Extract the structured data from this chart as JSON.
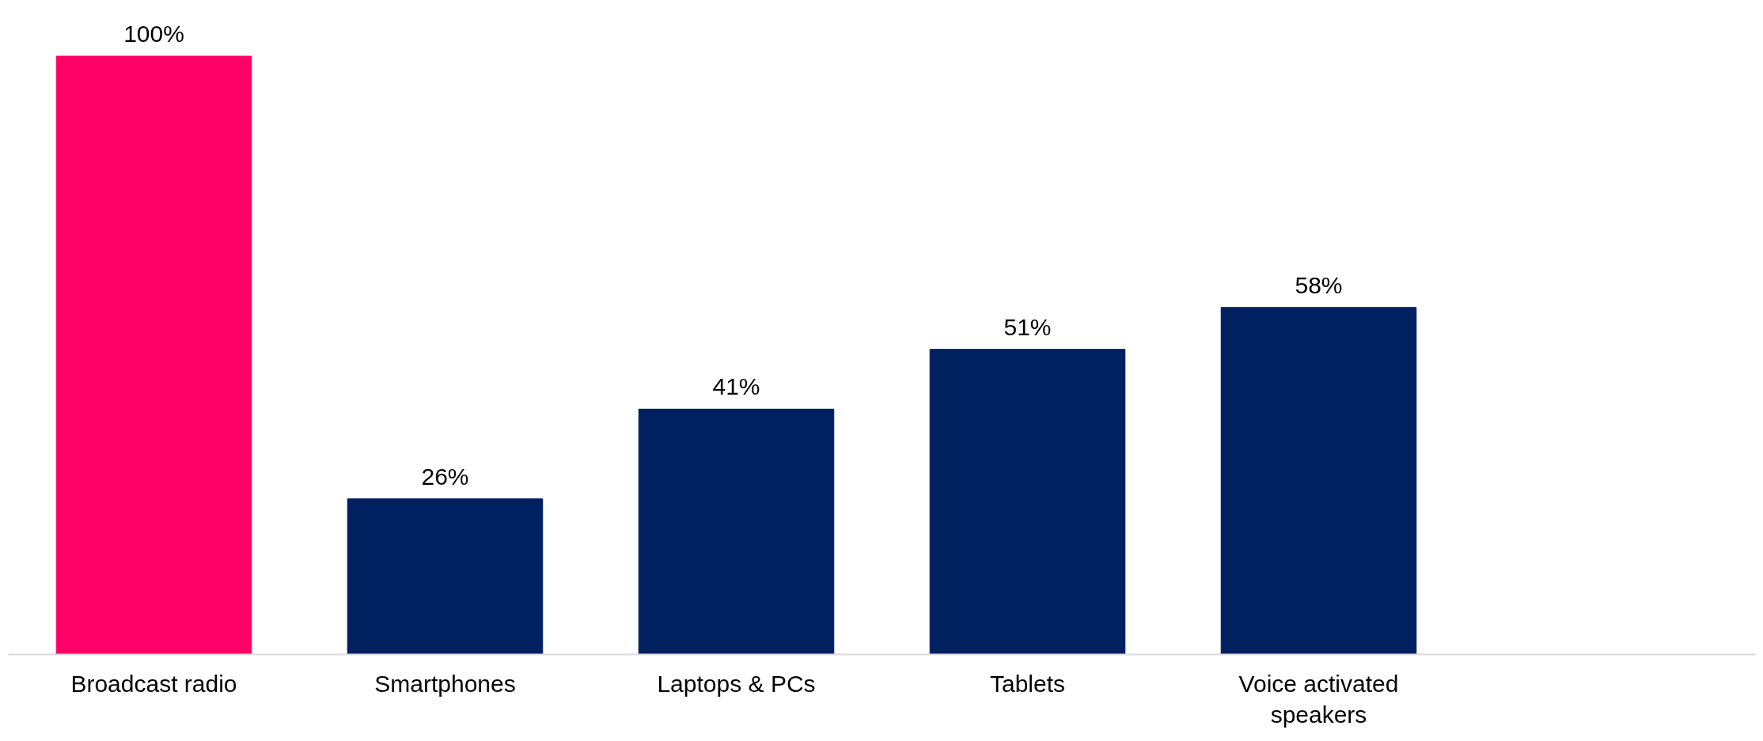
{
  "chart_data": {
    "type": "bar",
    "categories": [
      "Broadcast radio",
      "Smartphones",
      "Laptops & PCs",
      "Tablets",
      "Voice activated speakers"
    ],
    "values": [
      100,
      26,
      41,
      51,
      58
    ],
    "colors": [
      "#ff0066",
      "#002060",
      "#002060",
      "#002060",
      "#002060"
    ],
    "value_labels": [
      "100%",
      "26%",
      "41%",
      "51%",
      "58%"
    ]
  }
}
